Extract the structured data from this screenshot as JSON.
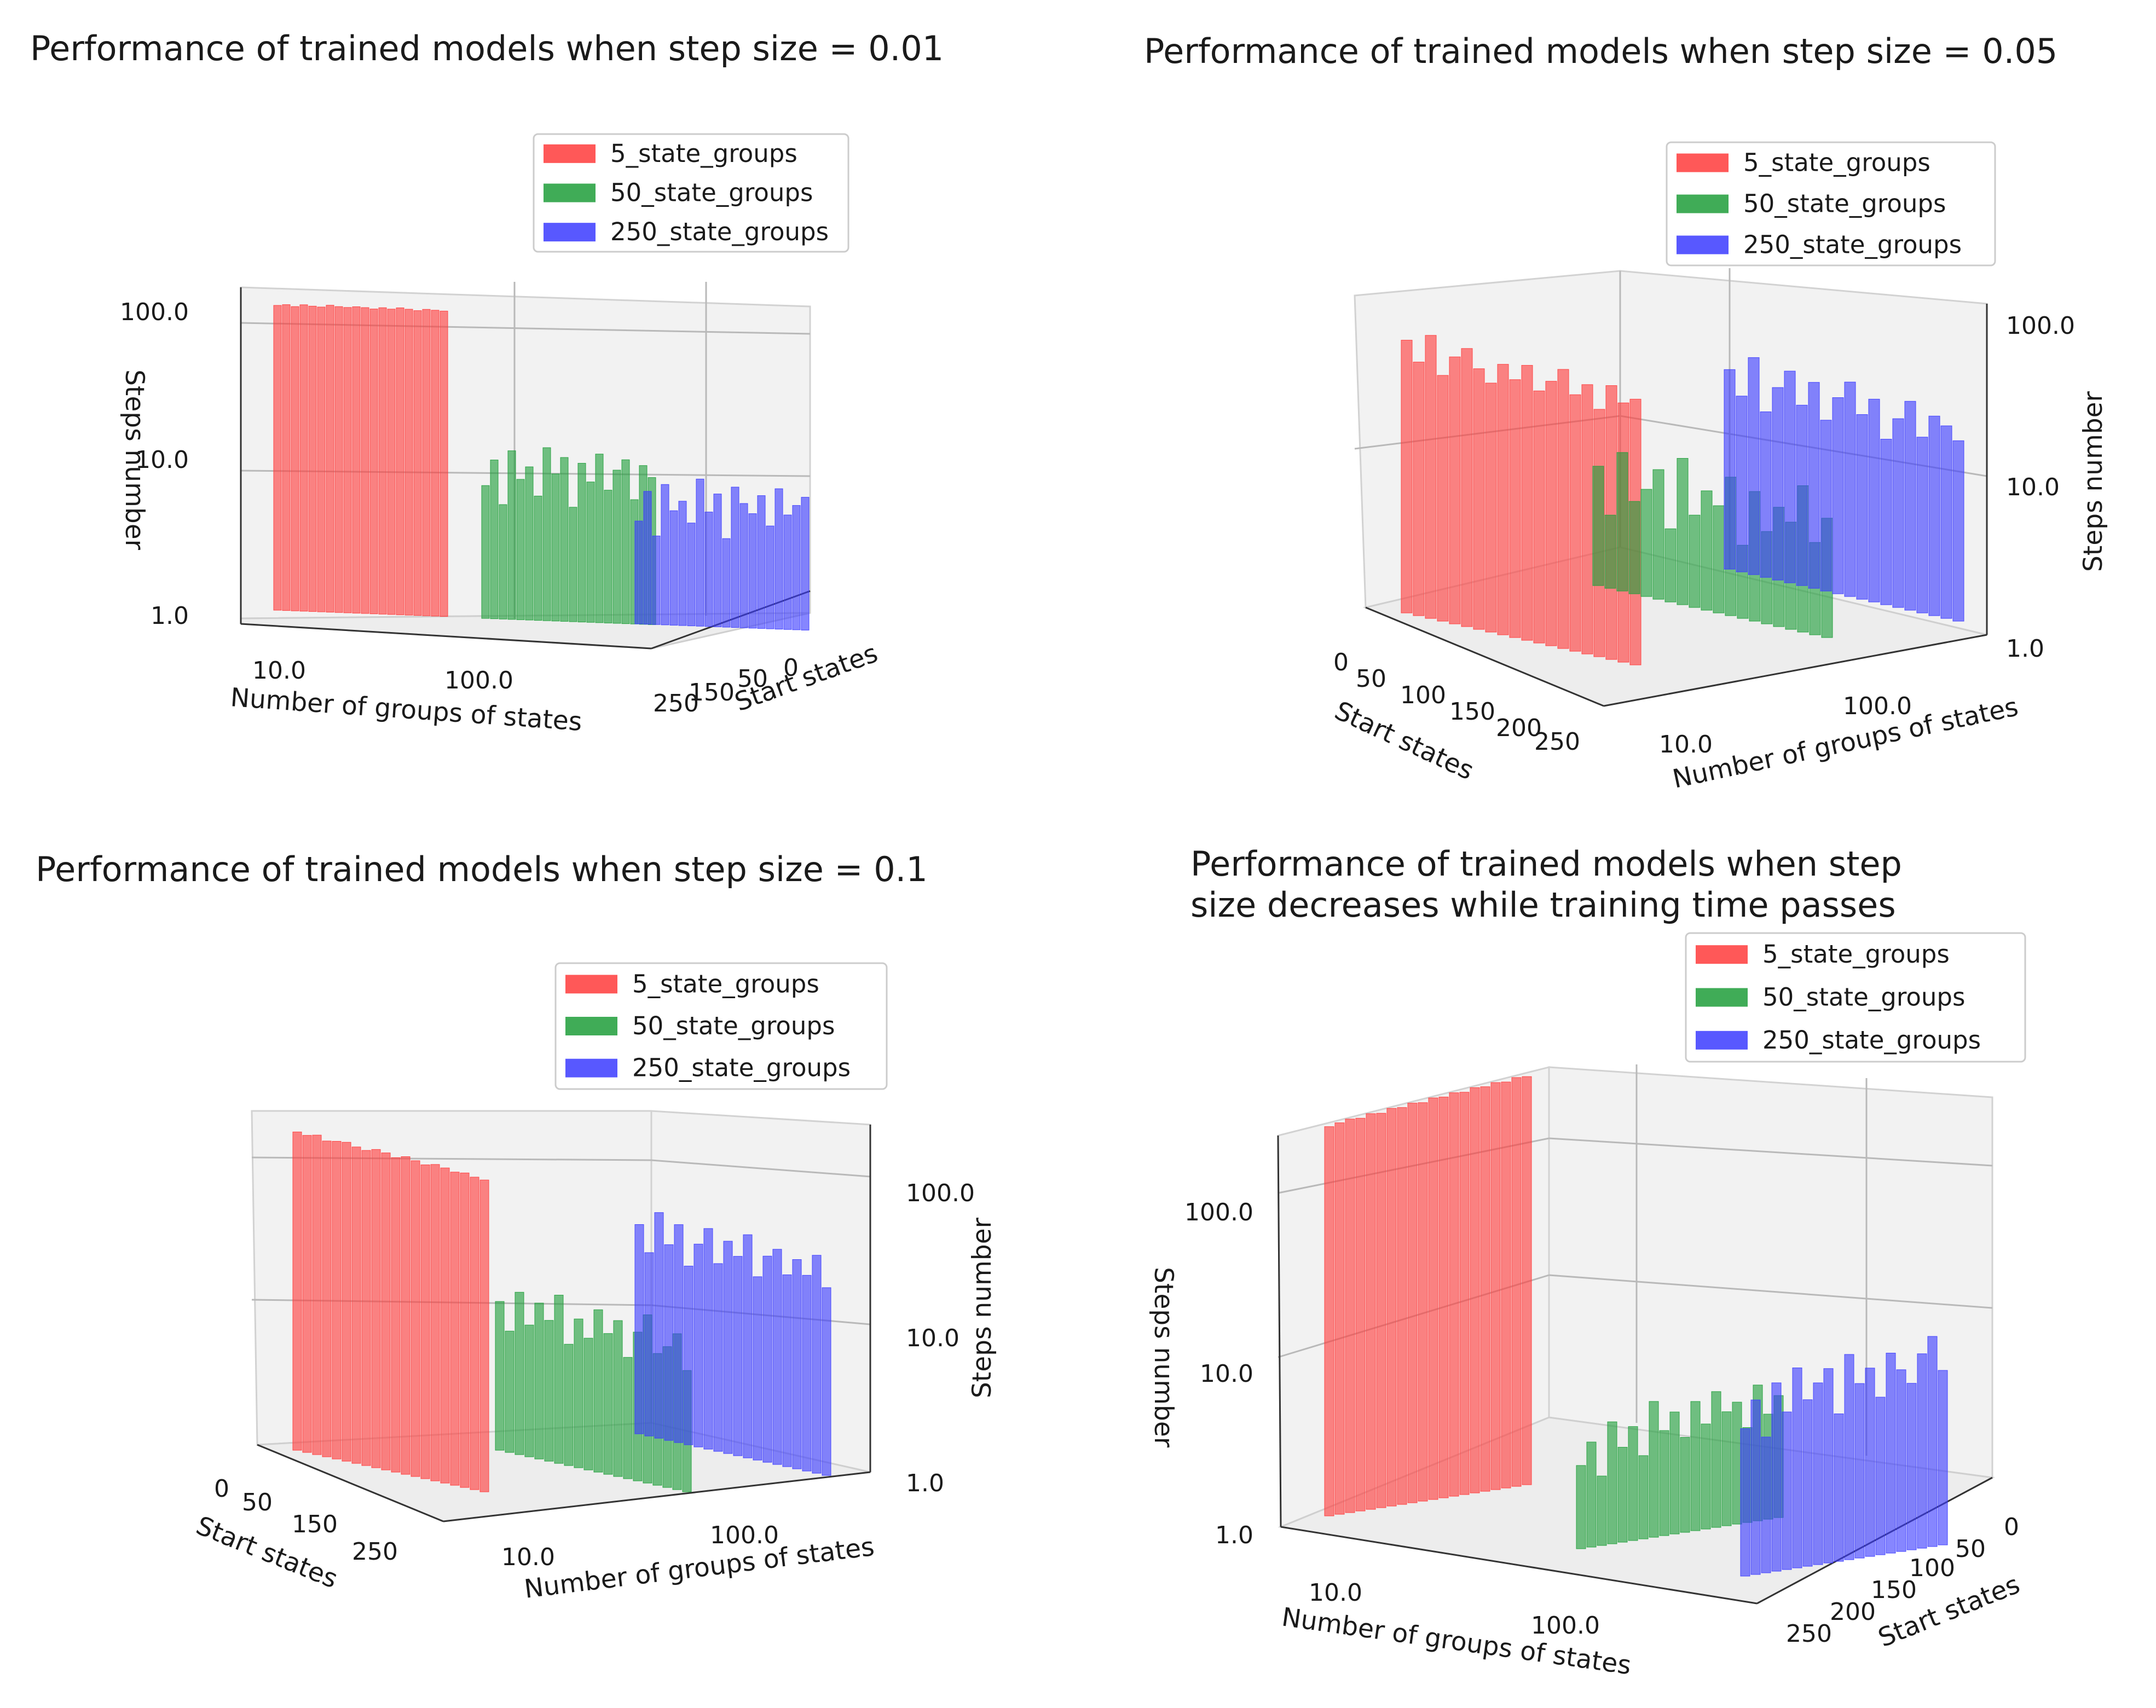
{
  "chart_data": [
    {
      "type": "bar",
      "title": "Performance of trained models when step size = 0.01",
      "xlabel": "Number of groups of states",
      "ylabel": "Start states",
      "zlabel": "Steps number",
      "x_scale": "log",
      "z_scale": "log",
      "x_ticks": [
        "10.0",
        "100.0"
      ],
      "y_ticks": [
        "0",
        "50",
        "150",
        "250"
      ],
      "z_ticks": [
        "1.0",
        "10.0",
        "100.0"
      ],
      "zlim": [
        1,
        150
      ],
      "legend_position": "top-center",
      "series": [
        {
          "name": "5_state_groups",
          "groups": 5,
          "color": "#ff3b3b",
          "values": [
            118,
            120,
            117,
            121,
            119,
            118,
            122,
            120,
            119,
            121,
            120,
            118,
            121,
            119,
            122,
            120,
            118,
            121,
            120,
            119
          ]
        },
        {
          "name": "50_state_groups",
          "groups": 50,
          "color": "#1f9e3a",
          "values": [
            8,
            12,
            6,
            14,
            9,
            11,
            7,
            15,
            10,
            13,
            6,
            12,
            9,
            14,
            8,
            11,
            13,
            7,
            12,
            10
          ]
        },
        {
          "name": "250_state_groups",
          "groups": 250,
          "color": "#3b3bff",
          "values": [
            5,
            8,
            4,
            9,
            6,
            7,
            5,
            10,
            6,
            8,
            4,
            9,
            7,
            6,
            8,
            5,
            9,
            6,
            7,
            8
          ]
        }
      ]
    },
    {
      "type": "bar",
      "title": "Performance of trained models when step size = 0.05",
      "xlabel": "Number of groups of states",
      "ylabel": "Start states",
      "zlabel": "Steps number",
      "x_scale": "log",
      "z_scale": "log",
      "x_ticks": [
        "10.0",
        "100.0"
      ],
      "y_ticks": [
        "0",
        "50",
        "100",
        "150",
        "200",
        "250"
      ],
      "z_ticks": [
        "1.0",
        "10.0",
        "100.0"
      ],
      "zlim": [
        1,
        150
      ],
      "legend_position": "top-right",
      "series": [
        {
          "name": "5_state_groups",
          "groups": 5,
          "color": "#ff3b3b",
          "values": [
            60,
            45,
            70,
            40,
            55,
            65,
            50,
            42,
            58,
            48,
            62,
            44,
            53,
            66,
            47,
            57,
            41,
            61,
            49,
            54
          ]
        },
        {
          "name": "50_state_groups",
          "groups": 50,
          "color": "#1f9e3a",
          "values": [
            6,
            3,
            8,
            4,
            5,
            7,
            3,
            9,
            4,
            6,
            5,
            8,
            3,
            7,
            4,
            6,
            5,
            9,
            4,
            6
          ]
        },
        {
          "name": "250_state_groups",
          "groups": 250,
          "color": "#3b3bff",
          "values": [
            20,
            14,
            26,
            12,
            18,
            24,
            15,
            22,
            13,
            19,
            25,
            16,
            21,
            12,
            17,
            23,
            14,
            20,
            18,
            15
          ]
        }
      ]
    },
    {
      "type": "bar",
      "title": "Performance of trained models when step size = 0.1",
      "xlabel": "Number of groups of states",
      "ylabel": "Start states",
      "zlabel": "Steps number",
      "x_scale": "log",
      "z_scale": "log",
      "x_ticks": [
        "10.0",
        "100.0"
      ],
      "y_ticks": [
        "0",
        "50",
        "150",
        "250"
      ],
      "z_ticks": [
        "1.0",
        "10.0",
        "100.0"
      ],
      "zlim": [
        1,
        150
      ],
      "legend_position": "top-center",
      "series": [
        {
          "name": "5_state_groups",
          "groups": 5,
          "color": "#ff3b3b",
          "values": [
            110,
            108,
            112,
            106,
            109,
            111,
            107,
            105,
            110,
            108,
            104,
            109,
            106,
            103,
            107,
            105,
            102,
            104,
            101,
            100
          ]
        },
        {
          "name": "50_state_groups",
          "groups": 50,
          "color": "#1f9e3a",
          "values": [
            9,
            6,
            11,
            7,
            10,
            8,
            12,
            6,
            9,
            7,
            11,
            8,
            10,
            6,
            9,
            12,
            7,
            8,
            10,
            6
          ]
        },
        {
          "name": "250_state_groups",
          "groups": 250,
          "color": "#3b3bff",
          "values": [
            22,
            15,
            28,
            18,
            25,
            14,
            20,
            26,
            16,
            23,
            19,
            27,
            15,
            21,
            24,
            17,
            22,
            18,
            25,
            16
          ]
        }
      ]
    },
    {
      "type": "bar",
      "title": "Performance of trained models when step size decreases while training time passes",
      "title_lines": [
        "Performance of trained models when step",
        "size decreases while training time passes"
      ],
      "xlabel": "Number of groups of states",
      "ylabel": "Start states",
      "zlabel": "Steps number",
      "x_scale": "log",
      "z_scale": "log",
      "x_ticks": [
        "10.0",
        "100.0"
      ],
      "y_ticks": [
        "0",
        "50",
        "100",
        "150",
        "200",
        "250"
      ],
      "z_ticks": [
        "1.0",
        "10.0",
        "100.0"
      ],
      "zlim": [
        1,
        300
      ],
      "legend_position": "top-right",
      "series": [
        {
          "name": "5_state_groups",
          "groups": 5,
          "color": "#ff3b3b",
          "values": [
            170,
            175,
            180,
            178,
            185,
            182,
            190,
            188,
            195,
            192,
            200,
            198,
            205,
            202,
            210,
            208,
            215,
            212,
            220,
            218
          ]
        },
        {
          "name": "50_state_groups",
          "groups": 50,
          "color": "#1f9e3a",
          "values": [
            3,
            4,
            2.5,
            5,
            3.5,
            4.5,
            3,
            6,
            4,
            5,
            3.5,
            5.5,
            4,
            6,
            4.5,
            5,
            3.5,
            6,
            4,
            5
          ]
        },
        {
          "name": "250_state_groups",
          "groups": 250,
          "color": "#3b3bff",
          "values": [
            7,
            10,
            6,
            12,
            8,
            14,
            9,
            11,
            13,
            7,
            15,
            10,
            12,
            8,
            14,
            11,
            9,
            13,
            16,
            10
          ]
        }
      ]
    }
  ]
}
